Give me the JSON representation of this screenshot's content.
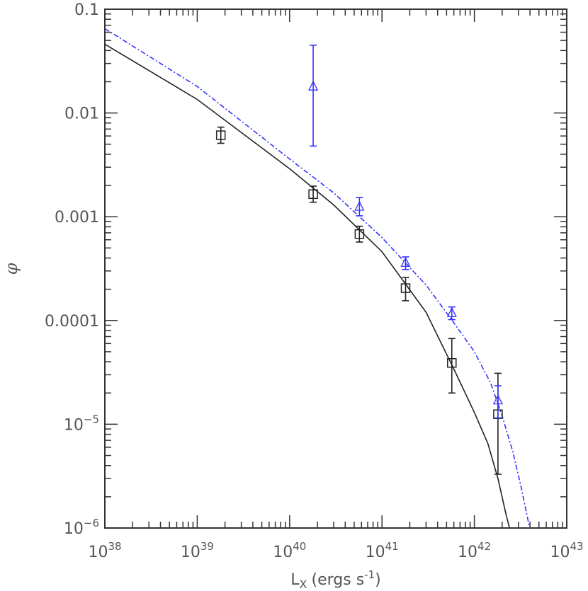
{
  "chart_data": {
    "type": "scatter",
    "title": "",
    "xlabel": "L",
    "xlabel_sub": "X",
    "xlabel_units": "(ergs s",
    "xlabel_units_sup": "-1",
    "xlabel_units_close": ")",
    "ylabel": "φ",
    "x_scale": "log",
    "y_scale": "log",
    "xlim": [
      1e+38,
      1e+43
    ],
    "ylim": [
      1e-06,
      0.1
    ],
    "x_tick_labels": [
      {
        "value": 1e+38,
        "base": "10",
        "exp": "38"
      },
      {
        "value": 1e+39,
        "base": "10",
        "exp": "39"
      },
      {
        "value": 1e+40,
        "base": "10",
        "exp": "40"
      },
      {
        "value": 1e+41,
        "base": "10",
        "exp": "41"
      },
      {
        "value": 1e+42,
        "base": "10",
        "exp": "42"
      },
      {
        "value": 1e+43,
        "base": "10",
        "exp": "43"
      }
    ],
    "y_tick_labels": [
      {
        "value": 0.1,
        "text": "0.1",
        "base": "",
        "exp": ""
      },
      {
        "value": 0.01,
        "text": "0.01",
        "base": "",
        "exp": ""
      },
      {
        "value": 0.001,
        "text": "0.001",
        "base": "",
        "exp": ""
      },
      {
        "value": 0.0001,
        "text": "0.0001",
        "base": "",
        "exp": ""
      },
      {
        "value": 1e-05,
        "text": "",
        "base": "10",
        "exp": "−5"
      },
      {
        "value": 1e-06,
        "text": "",
        "base": "10",
        "exp": "−6"
      }
    ],
    "grid": false,
    "colors": {
      "black_series": "#222222",
      "blue_series": "#3333ff",
      "axis": "#333333",
      "text": "#555555"
    },
    "series": [
      {
        "marker": "square",
        "color": "#222222",
        "points": [
          {
            "x": 1.8e+39,
            "y": 0.0061,
            "ylo": 0.0051,
            "yhi": 0.0073
          },
          {
            "x": 1.8e+40,
            "y": 0.00165,
            "ylo": 0.00138,
            "yhi": 0.00197
          },
          {
            "x": 5.7e+40,
            "y": 0.00068,
            "ylo": 0.00057,
            "yhi": 0.00081
          },
          {
            "x": 1.8e+41,
            "y": 0.000205,
            "ylo": 0.000155,
            "yhi": 0.00026
          },
          {
            "x": 5.7e+41,
            "y": 3.9e-05,
            "ylo": 2e-05,
            "yhi": 6.7e-05
          },
          {
            "x": 1.8e+42,
            "y": 1.25e-05,
            "ylo": 3.3e-06,
            "yhi": 3.1e-05
          }
        ]
      },
      {
        "marker": "triangle",
        "color": "#3333ff",
        "points": [
          {
            "x": 1.8e+40,
            "y": 0.018,
            "ylo": 0.0048,
            "yhi": 0.045
          },
          {
            "x": 5.7e+40,
            "y": 0.00125,
            "ylo": 0.00102,
            "yhi": 0.00153
          },
          {
            "x": 1.8e+41,
            "y": 0.00036,
            "ylo": 0.00031,
            "yhi": 0.00041
          },
          {
            "x": 5.7e+41,
            "y": 0.000118,
            "ylo": 0.000102,
            "yhi": 0.000135
          },
          {
            "x": 1.8e+42,
            "y": 1.7e-05,
            "ylo": 1.15e-05,
            "yhi": 2.35e-05
          }
        ]
      }
    ],
    "fit_curves": [
      {
        "style": "solid",
        "color": "#222222",
        "points": [
          [
            1e+38,
            0.046
          ],
          [
            1e+39,
            0.0135
          ],
          [
            1e+40,
            0.0029
          ],
          [
            3e+40,
            0.0013
          ],
          [
            1e+41,
            0.00046
          ],
          [
            3e+41,
            0.00012
          ],
          [
            6e+41,
            3.4e-05
          ],
          [
            1e+42,
            1.3e-05
          ],
          [
            1.4e+42,
            6.5e-06
          ],
          [
            1.8e+42,
            3e-06
          ],
          [
            2.2e+42,
            1.35e-06
          ],
          [
            2.4e+42,
            1e-06
          ]
        ]
      },
      {
        "style": "dash-dot",
        "color": "#3333ff",
        "points": [
          [
            1e+38,
            0.065
          ],
          [
            1e+39,
            0.018
          ],
          [
            1e+40,
            0.0036
          ],
          [
            3e+40,
            0.0017
          ],
          [
            1e+41,
            0.00063
          ],
          [
            3e+41,
            0.00022
          ],
          [
            6e+41,
            9.5e-05
          ],
          [
            1e+42,
            5e-05
          ],
          [
            1.5e+42,
            2.5e-05
          ],
          [
            2e+42,
            1.2e-05
          ],
          [
            2.6e+42,
            5.5e-06
          ],
          [
            3.2e+42,
            2.5e-06
          ],
          [
            3.8e+42,
            1.2e-06
          ],
          [
            3.95e+42,
            1e-06
          ]
        ]
      }
    ]
  }
}
